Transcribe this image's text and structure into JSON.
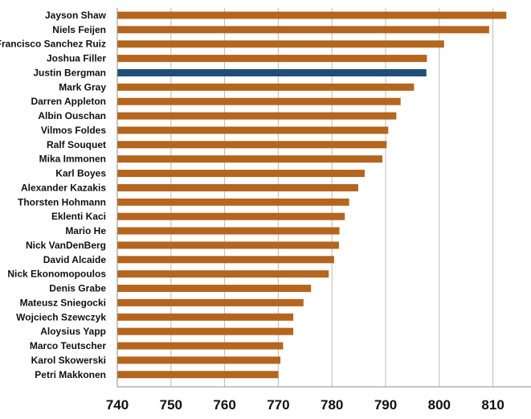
{
  "chart_data": {
    "type": "bar",
    "orientation": "horizontal",
    "categories": [
      "Jayson Shaw",
      "Niels Feijen",
      "Francisco Sanchez Ruiz",
      "Joshua Filler",
      "Justin Bergman",
      "Mark Gray",
      "Darren Appleton",
      "Albin Ouschan",
      "Vilmos Foldes",
      "Ralf Souquet",
      "Mika Immonen",
      "Karl Boyes",
      "Alexander Kazakis",
      "Thorsten Hohmann",
      "Eklenti Kaci",
      "Mario He",
      "Nick VanDenBerg",
      "David Alcaide",
      "Nick Ekonomopoulos",
      "Denis Grabe",
      "Mateusz Sniegocki",
      "Wojciech Szewczyk",
      "Aloysius Yapp",
      "Marco Teutscher",
      "Karol Skowerski",
      "Petri Makkonen"
    ],
    "values": [
      812.5,
      809.3,
      800.9,
      797.7,
      797.6,
      795.3,
      792.8,
      792.0,
      790.5,
      790.2,
      789.4,
      786.1,
      784.9,
      783.2,
      782.4,
      781.4,
      781.3,
      780.4,
      779.4,
      776.1,
      774.7,
      772.8,
      772.8,
      770.9,
      770.4,
      770.0
    ],
    "highlight_index": 4,
    "xlim": [
      740,
      820
    ],
    "xticks": [
      740,
      750,
      760,
      770,
      780,
      790,
      800,
      810
    ],
    "title": "",
    "xlabel": "",
    "ylabel": "",
    "grid": "vertical",
    "colors": {
      "bar": "#B5651D",
      "highlight": "#1F4E79"
    }
  }
}
